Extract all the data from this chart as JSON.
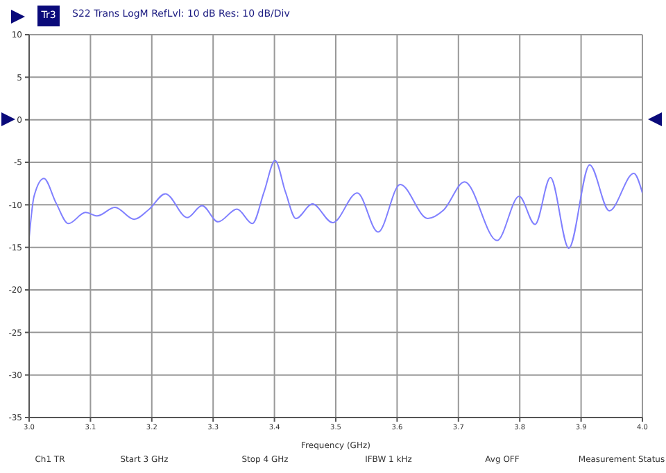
{
  "chart_data": {
    "type": "line",
    "title": "S22 Trans LogM RefLvl: 10 dB Res: 10 dB/Div",
    "xlabel": "Frequency (GHz)",
    "annotations": [
      "Tr3",
      "Ch1 TR",
      "Start 3 GHz",
      "Stop 4 GHz",
      "IFBW 1 kHz",
      "Avg OFF",
      "Measurement Status"
    ],
    "x": [
      3.0,
      3.008,
      3.024,
      3.044,
      3.064,
      3.092,
      3.111,
      3.14,
      3.171,
      3.196,
      3.222,
      3.258,
      3.282,
      3.308,
      3.339,
      3.364,
      3.383,
      3.401,
      3.418,
      3.435,
      3.462,
      3.495,
      3.535,
      3.569,
      3.605,
      3.65,
      3.676,
      3.71,
      3.763,
      3.799,
      3.825,
      3.85,
      3.88,
      3.914,
      3.946,
      3.986,
      4.0
    ],
    "series": [
      {
        "color": "#8080ff",
        "values": [
          -13.9,
          -9.0,
          -6.9,
          -9.8,
          -12.2,
          -10.9,
          -11.3,
          -10.3,
          -11.7,
          -10.5,
          -8.7,
          -11.5,
          -10.1,
          -12.0,
          -10.5,
          -12.2,
          -8.5,
          -4.8,
          -8.5,
          -11.6,
          -9.9,
          -12.1,
          -8.6,
          -13.2,
          -7.6,
          -11.6,
          -10.6,
          -7.3,
          -14.2,
          -9.0,
          -12.3,
          -6.8,
          -15.1,
          -5.3,
          -10.7,
          -6.3,
          -8.6
        ]
      }
    ],
    "xlim": [
      3.0,
      4.0
    ],
    "xticks": [
      {
        "value": 3.0,
        "label": "3.0"
      },
      {
        "value": 3.1,
        "label": "3.1"
      },
      {
        "value": 3.2,
        "label": "3.2"
      },
      {
        "value": 3.3,
        "label": "3.3"
      },
      {
        "value": 3.4,
        "label": "3.4"
      },
      {
        "value": 3.5,
        "label": "3.5"
      },
      {
        "value": 3.6,
        "label": "3.6"
      },
      {
        "value": 3.7,
        "label": "3.7"
      },
      {
        "value": 3.8,
        "label": "3.8"
      },
      {
        "value": 3.9,
        "label": "3.9"
      },
      {
        "value": 4.0,
        "label": "4.0"
      }
    ],
    "ylim": [
      -35,
      10
    ],
    "yticks": [
      -35,
      -30,
      -25,
      -20,
      -15,
      -10,
      -5,
      0,
      5,
      10
    ],
    "grid": true,
    "legend": false,
    "marker": "none",
    "line_style": "solid"
  }
}
